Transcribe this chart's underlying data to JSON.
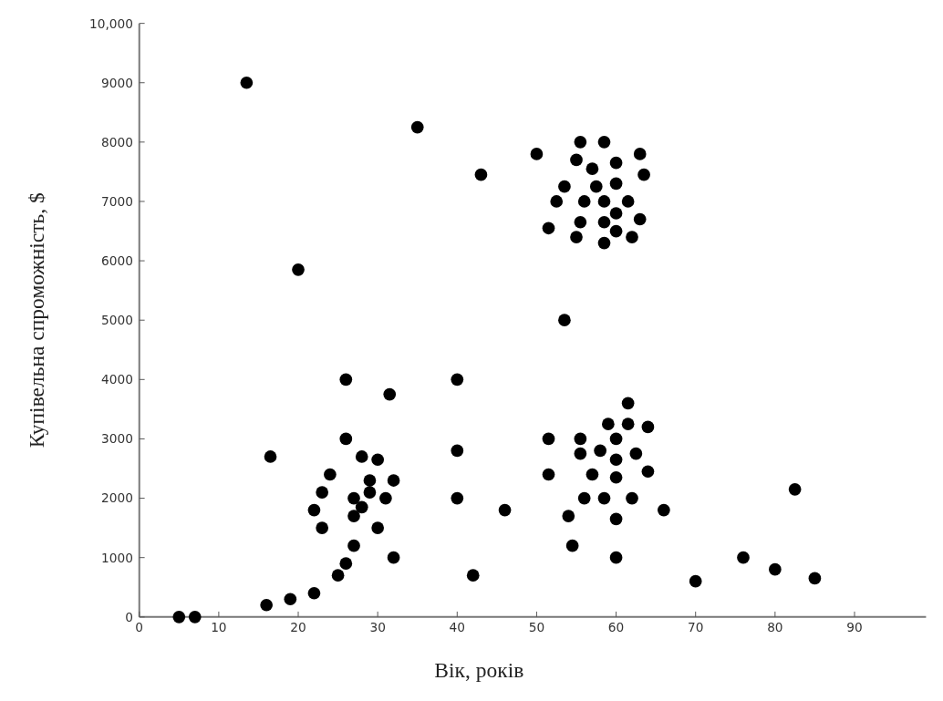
{
  "chart_data": {
    "type": "scatter",
    "xlabel": "Вік, років",
    "ylabel": "Купівельна спроможність, $",
    "xlim": [
      0,
      99
    ],
    "ylim": [
      0,
      10000
    ],
    "xticks": [
      0,
      10,
      20,
      30,
      40,
      50,
      60,
      70,
      80,
      90
    ],
    "yticks": [
      0,
      1000,
      2000,
      3000,
      4000,
      5000,
      6000,
      7000,
      8000,
      9000,
      {
        "value": 10000,
        "label": "10,000"
      }
    ],
    "grid": false,
    "marker": "circle",
    "series": [
      {
        "color": "#000000",
        "x": [
          5,
          7,
          16,
          19,
          22,
          25,
          26,
          27,
          32,
          30,
          23,
          22,
          27,
          28,
          27,
          23,
          24,
          29,
          29,
          31,
          32,
          28,
          30,
          26,
          16.5,
          26,
          31.5,
          13.5,
          20,
          35,
          43,
          50,
          53.5,
          55.5,
          58.5,
          55,
          63,
          60,
          57,
          63.5,
          53.5,
          57.5,
          60,
          52.5,
          56,
          58.5,
          61.5,
          60,
          55.5,
          58.5,
          63,
          51.5,
          60,
          55,
          58.5,
          62,
          61.5,
          59,
          61.5,
          64,
          51.5,
          55.5,
          60,
          58,
          55.5,
          62.5,
          60,
          40,
          51.5,
          57,
          60,
          64,
          40,
          56,
          58.5,
          62,
          46,
          54,
          60,
          66,
          54.5,
          60,
          42,
          40,
          82.5,
          76,
          80,
          85,
          70
        ],
        "values": [
          0,
          0,
          200,
          300,
          400,
          700,
          900,
          1200,
          1000,
          1500,
          1500,
          1800,
          1700,
          1850,
          2000,
          2100,
          2400,
          2100,
          2300,
          2000,
          2300,
          2700,
          2650,
          3000,
          2700,
          4000,
          3750,
          9000,
          5850,
          8250,
          7450,
          7800,
          5000,
          8000,
          8000,
          7700,
          7800,
          7650,
          7550,
          7450,
          7250,
          7250,
          7300,
          7000,
          7000,
          7000,
          7000,
          6800,
          6650,
          6650,
          6700,
          6550,
          6500,
          6400,
          6300,
          6400,
          3600,
          3250,
          3250,
          3200,
          3000,
          3000,
          3000,
          2800,
          2750,
          2750,
          2650,
          2800,
          2400,
          2400,
          2350,
          2450,
          2000,
          2000,
          2000,
          2000,
          1800,
          1700,
          1650,
          1800,
          1200,
          1000,
          700,
          4000,
          2150,
          1000,
          800,
          650,
          600
        ]
      }
    ]
  }
}
